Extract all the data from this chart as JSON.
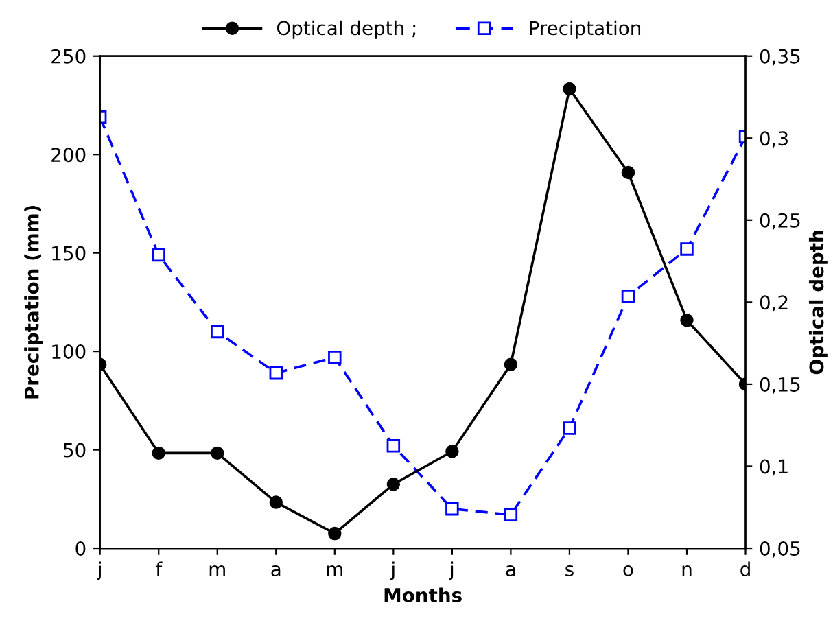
{
  "chart_data": {
    "type": "line",
    "xlabel": "Months",
    "ylabel": "Preciptation (mm)",
    "y2label": "Optical depth",
    "categories": [
      "j",
      "f",
      "m",
      "a",
      "m",
      "j",
      "j",
      "a",
      "s",
      "o",
      "n",
      "d"
    ],
    "ylim": [
      0,
      250
    ],
    "yticks": [
      0,
      50,
      100,
      150,
      200,
      250
    ],
    "y2lim": [
      0.05,
      0.35
    ],
    "y2ticks": [
      {
        "value": 0.05,
        "label": "0,05"
      },
      {
        "value": 0.1,
        "label": "0,1"
      },
      {
        "value": 0.15,
        "label": "0,15"
      },
      {
        "value": 0.2,
        "label": "0,2"
      },
      {
        "value": 0.25,
        "label": "0,25"
      },
      {
        "value": 0.3,
        "label": "0,3"
      },
      {
        "value": 0.35,
        "label": "0,35"
      }
    ],
    "series": [
      {
        "name": "Optical depth ;",
        "color": "#000000",
        "axis": "y2",
        "marker": "circle",
        "line_style": "solid",
        "values": [
          0.162,
          0.108,
          0.108,
          0.078,
          0.059,
          0.089,
          0.109,
          0.162,
          0.33,
          0.279,
          0.189,
          0.15
        ]
      },
      {
        "name": "Preciptation",
        "color": "#0000ff",
        "marker": "square",
        "line_style": "dashed",
        "values": [
          219,
          149,
          110,
          89,
          97,
          52,
          20,
          17,
          61,
          128,
          152,
          209
        ]
      }
    ],
    "legend": "top",
    "grid": false
  }
}
